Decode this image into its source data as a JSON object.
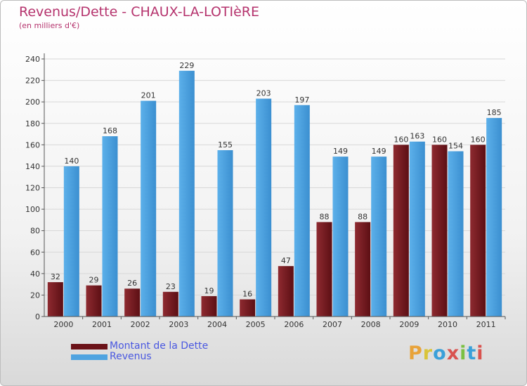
{
  "header": {
    "title": "Revenus/Dette - CHAUX-LA-LOTIèRE",
    "subtitle": "(en milliers d'€)"
  },
  "chart_data": {
    "type": "bar",
    "categories": [
      "2000",
      "2001",
      "2002",
      "2003",
      "2004",
      "2005",
      "2006",
      "2007",
      "2008",
      "2009",
      "2010",
      "2011"
    ],
    "series": [
      {
        "name": "Montant de la Dette",
        "values": [
          32,
          29,
          26,
          23,
          19,
          16,
          47,
          88,
          88,
          160,
          160,
          160
        ],
        "color": "#7a1c22"
      },
      {
        "name": "Revenus",
        "values": [
          140,
          168,
          201,
          229,
          155,
          203,
          197,
          149,
          149,
          163,
          154,
          185
        ],
        "color": "#4fa3e0"
      }
    ],
    "yticks": [
      0,
      20,
      40,
      60,
      80,
      100,
      120,
      140,
      160,
      180,
      200,
      220,
      240
    ],
    "ylim": [
      0,
      240
    ],
    "grid": true,
    "legend": "bottom-left"
  },
  "legend": {
    "debt_label": "Montant de la Dette",
    "revenue_label": "Revenus"
  },
  "logo": {
    "letters": [
      "P",
      "r",
      "o",
      "x",
      "i",
      "t",
      "i"
    ]
  }
}
